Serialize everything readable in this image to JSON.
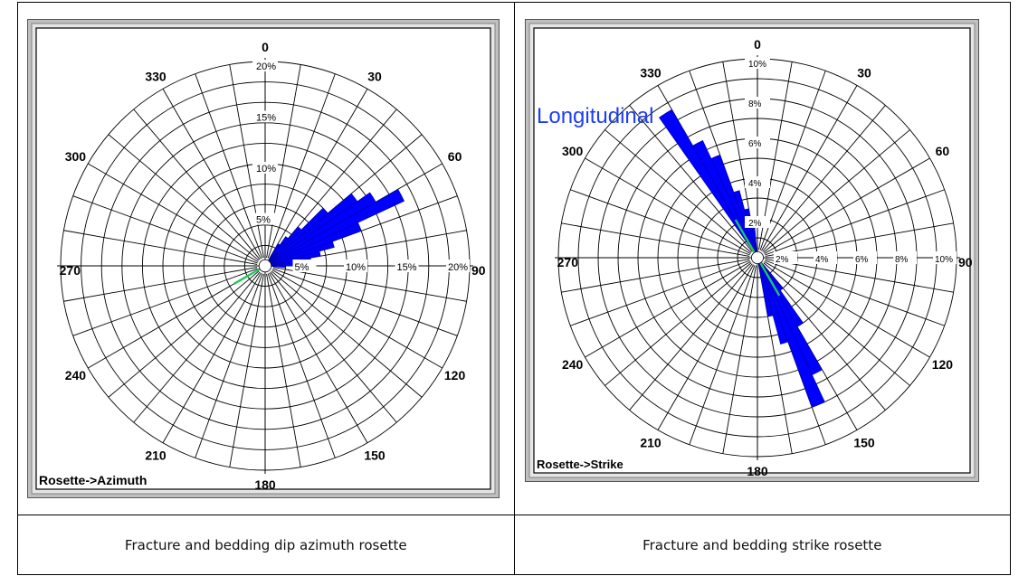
{
  "captions": {
    "left": "Fracture and bedding dip azimuth rosette",
    "right": "Fracture and bedding strike rosette"
  },
  "chart_data": [
    {
      "type": "rose",
      "title": "",
      "panel_label": "Rosette->Azimuth",
      "angle_labels": [
        "0",
        "30",
        "60",
        "90",
        "120",
        "150",
        "180",
        "210",
        "240",
        "270",
        "300",
        "330"
      ],
      "radial_max": 20,
      "radial_labels": [
        "5%",
        "10%",
        "15%",
        "20%"
      ],
      "radial_labels_h": [
        "5%",
        "10%",
        "15%",
        "20%"
      ],
      "bin_width_deg": 5,
      "bins": [
        {
          "azimuth": 30,
          "value": 2.5
        },
        {
          "azimuth": 35,
          "value": 3.5
        },
        {
          "azimuth": 40,
          "value": 5.0
        },
        {
          "azimuth": 45,
          "value": 8.0
        },
        {
          "azimuth": 50,
          "value": 11.0
        },
        {
          "azimuth": 55,
          "value": 12.5
        },
        {
          "azimuth": 60,
          "value": 15.0
        },
        {
          "azimuth": 65,
          "value": 10.0
        },
        {
          "azimuth": 70,
          "value": 7.0
        },
        {
          "azimuth": 75,
          "value": 5.5
        },
        {
          "azimuth": 80,
          "value": 4.5
        },
        {
          "azimuth": 85,
          "value": 3.0
        },
        {
          "azimuth": 90,
          "value": 2.0
        }
      ],
      "bedding_line": {
        "azimuth": 240,
        "length": 3.5
      },
      "colors": {
        "bins": "#0000ff",
        "bedding": "#22c55e",
        "grid": "#000000"
      }
    },
    {
      "type": "rose",
      "title": "",
      "panel_label": "Rosette->Strike",
      "annotation": "Longitudinal",
      "angle_labels": [
        "0",
        "30",
        "60",
        "90",
        "120",
        "150",
        "180",
        "210",
        "240",
        "270",
        "300",
        "330"
      ],
      "radial_max": 10,
      "radial_labels": [
        "2%",
        "4%",
        "6%",
        "8%",
        "10%"
      ],
      "radial_labels_h": [
        "2%",
        "4%",
        "6%",
        "8%",
        "10%"
      ],
      "bin_width_deg": 5,
      "bins": [
        {
          "azimuth": 325,
          "value": 8.6
        },
        {
          "azimuth": 330,
          "value": 6.5
        },
        {
          "azimuth": 335,
          "value": 5.5
        },
        {
          "azimuth": 340,
          "value": 3.5
        },
        {
          "azimuth": 345,
          "value": 2.5
        },
        {
          "azimuth": 350,
          "value": 1.5
        },
        {
          "azimuth": 140,
          "value": 2.0
        },
        {
          "azimuth": 145,
          "value": 4.0
        },
        {
          "azimuth": 150,
          "value": 6.5
        },
        {
          "azimuth": 155,
          "value": 8.0
        },
        {
          "azimuth": 160,
          "value": 4.5
        },
        {
          "azimuth": 165,
          "value": 3.0
        }
      ],
      "bedding_line": {
        "azimuth": 330,
        "length": 2.2,
        "both_ways": true
      },
      "colors": {
        "bins": "#0000ff",
        "bedding": "#22c55e",
        "grid": "#000000",
        "annotation": "#1d3df5"
      }
    }
  ]
}
